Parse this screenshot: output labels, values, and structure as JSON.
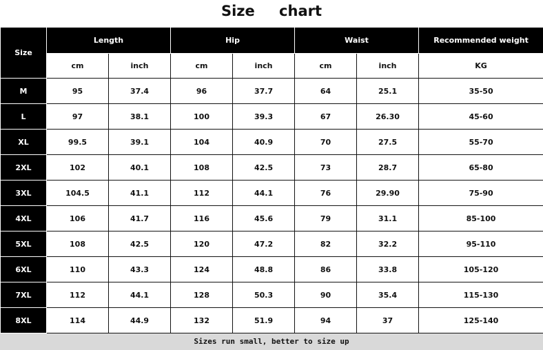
{
  "title": "Size chart",
  "headers": {
    "size": "Size",
    "groups": [
      "Length",
      "Hip",
      "Waist",
      "Recommended weight"
    ],
    "units": [
      "cm",
      "inch",
      "cm",
      "inch",
      "cm",
      "inch",
      "KG"
    ]
  },
  "rows": [
    [
      "M",
      "95",
      "37.4",
      "96",
      "37.7",
      "64",
      "25.1",
      "35-50"
    ],
    [
      "L",
      "97",
      "38.1",
      "100",
      "39.3",
      "67",
      "26.30",
      "45-60"
    ],
    [
      "XL",
      "99.5",
      "39.1",
      "104",
      "40.9",
      "70",
      "27.5",
      "55-70"
    ],
    [
      "2XL",
      "102",
      "40.1",
      "108",
      "42.5",
      "73",
      "28.7",
      "65-80"
    ],
    [
      "3XL",
      "104.5",
      "41.1",
      "112",
      "44.1",
      "76",
      "29.90",
      "75-90"
    ],
    [
      "4XL",
      "106",
      "41.7",
      "116",
      "45.6",
      "79",
      "31.1",
      "85-100"
    ],
    [
      "5XL",
      "108",
      "42.5",
      "120",
      "47.2",
      "82",
      "32.2",
      "95-110"
    ],
    [
      "6XL",
      "110",
      "43.3",
      "124",
      "48.8",
      "86",
      "33.8",
      "105-120"
    ],
    [
      "7XL",
      "112",
      "44.1",
      "128",
      "50.3",
      "90",
      "35.4",
      "115-130"
    ],
    [
      "8XL",
      "114",
      "44.9",
      "132",
      "51.9",
      "94",
      "37",
      "125-140"
    ]
  ],
  "footer": "Sizes run small, better to size up"
}
